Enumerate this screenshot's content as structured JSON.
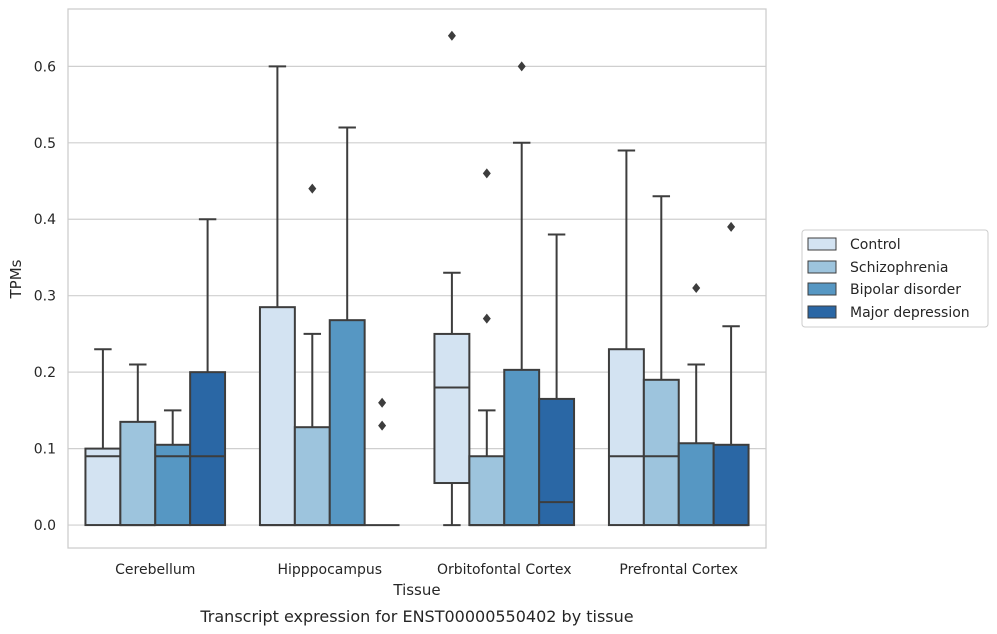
{
  "colors": {
    "Control": "#d3e3f2",
    "Schizophrenia": "#9dc4dd",
    "Bipolar disorder": "#5697c3",
    "Major depression": "#2a67a5",
    "grid": "#cfcfcf",
    "frame": "#cccccc",
    "box_edge": "#3d3d3d"
  },
  "chart_data": {
    "type": "box",
    "xlabel": "Tissue",
    "ylabel": "TPMs",
    "caption": "Transcript expression for ENST00000550402 by tissue",
    "ylim": [
      -0.03,
      0.675
    ],
    "yticks": [
      "0.0",
      "0.1",
      "0.2",
      "0.3",
      "0.4",
      "0.5",
      "0.6"
    ],
    "grid": "horizontal",
    "legend_position": "right",
    "categories": [
      "Cerebellum",
      "Hipppocampus",
      "Orbitofontal Cortex",
      "Prefrontal Cortex"
    ],
    "series": [
      {
        "name": "Control",
        "boxes": [
          {
            "min": 0,
            "q1": 0,
            "median": 0.09,
            "q3": 0.1,
            "max": 0.23,
            "outliers": []
          },
          {
            "min": 0,
            "q1": 0,
            "median": 0,
            "q3": 0.285,
            "max": 0.6,
            "outliers": []
          },
          {
            "min": 0,
            "q1": 0.055,
            "median": 0.18,
            "q3": 0.25,
            "max": 0.33,
            "outliers": [
              0.64
            ]
          },
          {
            "min": 0,
            "q1": 0,
            "median": 0.09,
            "q3": 0.23,
            "max": 0.49,
            "outliers": []
          }
        ]
      },
      {
        "name": "Schizophrenia",
        "boxes": [
          {
            "min": 0,
            "q1": 0,
            "median": 0,
            "q3": 0.135,
            "max": 0.21,
            "outliers": []
          },
          {
            "min": 0,
            "q1": 0,
            "median": 0,
            "q3": 0.128,
            "max": 0.25,
            "outliers": [
              0.44
            ]
          },
          {
            "min": 0,
            "q1": 0,
            "median": 0,
            "q3": 0.09,
            "max": 0.15,
            "outliers": [
              0.27,
              0.46
            ]
          },
          {
            "min": 0,
            "q1": 0,
            "median": 0.09,
            "q3": 0.19,
            "max": 0.43,
            "outliers": []
          }
        ]
      },
      {
        "name": "Bipolar disorder",
        "boxes": [
          {
            "min": 0,
            "q1": 0,
            "median": 0.09,
            "q3": 0.105,
            "max": 0.15,
            "outliers": []
          },
          {
            "min": 0,
            "q1": 0,
            "median": 0,
            "q3": 0.268,
            "max": 0.52,
            "outliers": []
          },
          {
            "min": 0,
            "q1": 0,
            "median": 0,
            "q3": 0.203,
            "max": 0.5,
            "outliers": [
              0.6
            ]
          },
          {
            "min": 0,
            "q1": 0,
            "median": 0,
            "q3": 0.107,
            "max": 0.21,
            "outliers": [
              0.31
            ]
          }
        ]
      },
      {
        "name": "Major depression",
        "boxes": [
          {
            "min": 0,
            "q1": 0,
            "median": 0.09,
            "q3": 0.2,
            "max": 0.4,
            "outliers": []
          },
          {
            "min": 0,
            "q1": 0,
            "median": 0,
            "q3": 0,
            "max": 0,
            "outliers": [
              0.13,
              0.16
            ]
          },
          {
            "min": 0,
            "q1": 0,
            "median": 0.03,
            "q3": 0.165,
            "max": 0.38,
            "outliers": []
          },
          {
            "min": 0,
            "q1": 0,
            "median": 0,
            "q3": 0.105,
            "max": 0.26,
            "outliers": [
              0.39
            ]
          }
        ]
      }
    ]
  }
}
